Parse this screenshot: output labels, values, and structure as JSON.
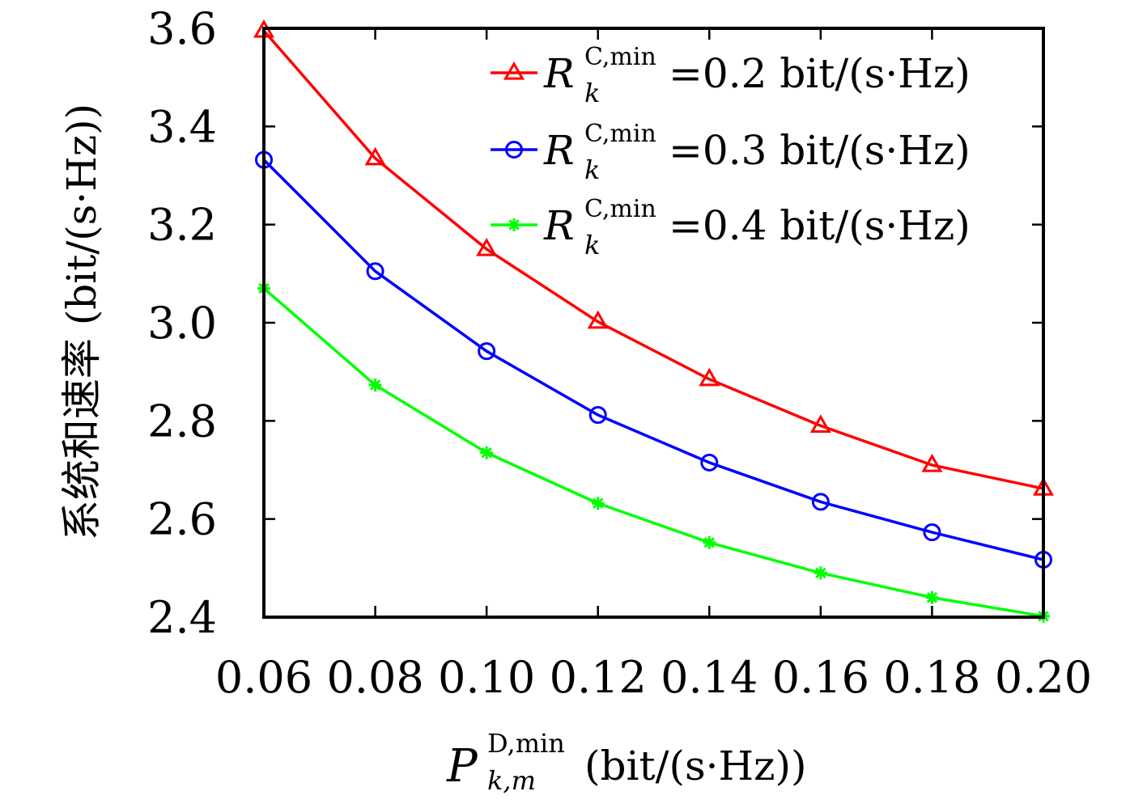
{
  "chart_data": {
    "type": "line",
    "xlabel": {
      "symbol": "P",
      "superscript": "D,min",
      "subscript": "k,m",
      "units": "(bit/(s·Hz))"
    },
    "ylabel": "系统和速率 (bit/(s·Hz))",
    "x": [
      0.06,
      0.08,
      0.1,
      0.12,
      0.14,
      0.16,
      0.18,
      0.2
    ],
    "x_tick_labels": [
      "0.06",
      "0.08",
      "0.10",
      "0.12",
      "0.14",
      "0.16",
      "0.18",
      "0.20"
    ],
    "y_ticks": [
      2.4,
      2.6,
      2.8,
      3.0,
      3.2,
      3.4,
      3.6
    ],
    "y_tick_labels": [
      "2.4",
      "2.6",
      "2.8",
      "3.0",
      "3.2",
      "3.4",
      "3.6"
    ],
    "xlim": [
      0.06,
      0.2
    ],
    "ylim": [
      2.4,
      3.6
    ],
    "grid": false,
    "legend_position": "top-right",
    "series": [
      {
        "name": "=0.2 bit/(s·Hz)",
        "legend_symbol": "R",
        "legend_superscript": "C,min",
        "legend_subscript": "k",
        "color": "#ff0000",
        "marker": "triangle",
        "values": [
          3.595,
          3.335,
          3.15,
          3.002,
          2.885,
          2.79,
          2.71,
          2.662
        ]
      },
      {
        "name": "=0.3 bit/(s·Hz)",
        "legend_symbol": "R",
        "legend_superscript": "C,min",
        "legend_subscript": "k",
        "color": "#0000ff",
        "marker": "circle",
        "values": [
          3.332,
          3.105,
          2.942,
          2.812,
          2.715,
          2.635,
          2.573,
          2.517
        ]
      },
      {
        "name": "=0.4 bit/(s·Hz)",
        "legend_symbol": "R",
        "legend_superscript": "C,min",
        "legend_subscript": "k",
        "color": "#00ff00",
        "marker": "asterisk",
        "values": [
          3.07,
          2.873,
          2.735,
          2.632,
          2.552,
          2.49,
          2.44,
          2.402
        ]
      }
    ]
  }
}
